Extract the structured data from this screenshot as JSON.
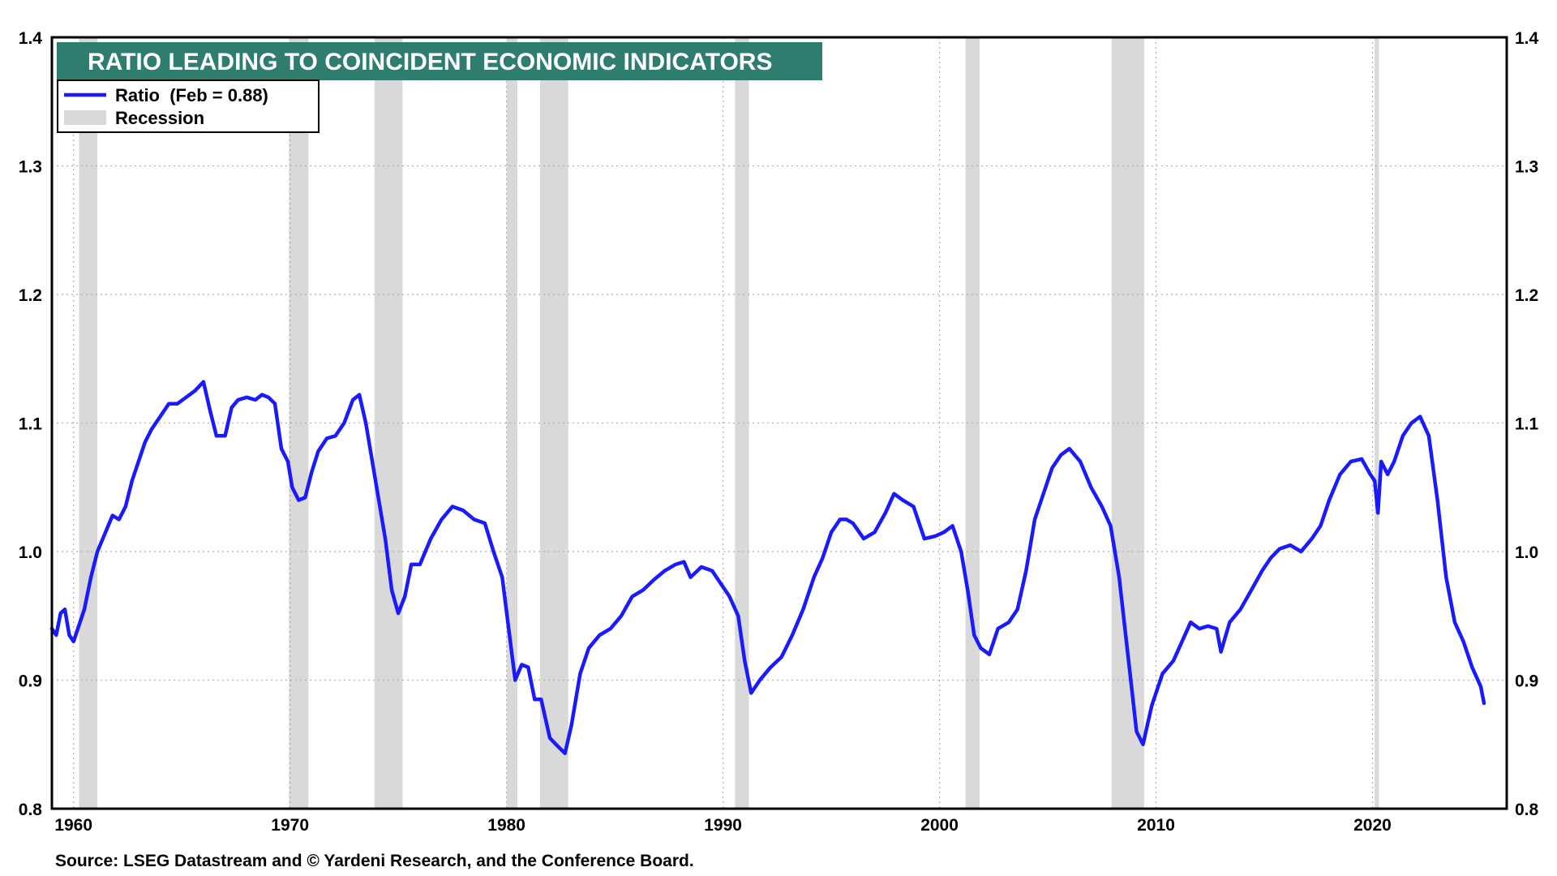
{
  "chart_data": {
    "type": "line",
    "title": "RATIO LEADING TO COINCIDENT ECONOMIC INDICATORS",
    "source": "Source: LSEG Datastream and © Yardeni Research, and the Conference Board.",
    "xlim": [
      1959.0,
      2026.2
    ],
    "ylim": [
      0.8,
      1.4
    ],
    "x_ticks": [
      1960,
      1970,
      1980,
      1990,
      2000,
      2010,
      2020
    ],
    "y_ticks": [
      0.8,
      0.9,
      1.0,
      1.1,
      1.2,
      1.3,
      1.4
    ],
    "y_tick_labels": [
      "0.8",
      "0.9",
      "1.0",
      "1.1",
      "1.2",
      "1.3",
      "1.4"
    ],
    "grid": true,
    "legend_placement": "top-left",
    "legend": [
      {
        "label": "Ratio  (Feb = 0.88)",
        "kind": "line",
        "color": "#1a1aff"
      },
      {
        "label": "Recession",
        "kind": "band",
        "color": "#d9d9d9"
      }
    ],
    "colors": {
      "line": "#1a1aff",
      "recession": "#d9d9d9",
      "title_bg": "#2e7d6f",
      "grid": "#b0b0b0"
    },
    "recessions": [
      [
        1960.25,
        1961.1
      ],
      [
        1969.95,
        1970.85
      ],
      [
        1973.9,
        1975.2
      ],
      [
        1980.0,
        1980.5
      ],
      [
        1981.55,
        1982.85
      ],
      [
        1990.55,
        1991.2
      ],
      [
        2001.2,
        2001.85
      ],
      [
        2007.95,
        2009.45
      ],
      [
        2020.1,
        2020.3
      ]
    ],
    "series": [
      {
        "x": [
          1959.0,
          1959.2,
          1959.4,
          1959.6,
          1959.8,
          1960.0,
          1960.2,
          1960.5,
          1960.8,
          1961.1,
          1961.4,
          1961.8,
          1962.1,
          1962.4,
          1962.7,
          1963.0,
          1963.3,
          1963.6,
          1964.0,
          1964.4,
          1964.8,
          1965.2,
          1965.6,
          1966.0,
          1966.3,
          1966.6,
          1967.0,
          1967.3,
          1967.6,
          1968.0,
          1968.4,
          1968.7,
          1969.0,
          1969.3,
          1969.6,
          1969.9,
          1970.1,
          1970.4,
          1970.7,
          1971.0,
          1971.3,
          1971.7,
          1972.1,
          1972.5,
          1972.9,
          1973.2,
          1973.5,
          1973.8,
          1974.1,
          1974.4,
          1974.7,
          1975.0,
          1975.3,
          1975.6,
          1976.0,
          1976.5,
          1977.0,
          1977.5,
          1978.0,
          1978.5,
          1979.0,
          1979.4,
          1979.8,
          1980.1,
          1980.4,
          1980.7,
          1981.0,
          1981.3,
          1981.6,
          1982.0,
          1982.4,
          1982.7,
          1983.0,
          1983.4,
          1983.8,
          1984.3,
          1984.8,
          1985.3,
          1985.8,
          1986.3,
          1986.8,
          1987.3,
          1987.8,
          1988.2,
          1988.5,
          1989.0,
          1989.5,
          1989.9,
          1990.3,
          1990.7,
          1991.0,
          1991.3,
          1991.7,
          1992.2,
          1992.7,
          1993.2,
          1993.7,
          1994.2,
          1994.6,
          1995.0,
          1995.4,
          1995.7,
          1996.0,
          1996.5,
          1997.0,
          1997.5,
          1997.9,
          1998.3,
          1998.8,
          1999.3,
          1999.8,
          2000.2,
          2000.6,
          2001.0,
          2001.3,
          2001.6,
          2001.9,
          2002.3,
          2002.7,
          2003.2,
          2003.6,
          2004.0,
          2004.4,
          2004.8,
          2005.2,
          2005.6,
          2006.0,
          2006.5,
          2007.0,
          2007.5,
          2007.9,
          2008.3,
          2008.6,
          2008.9,
          2009.1,
          2009.4,
          2009.8,
          2010.3,
          2010.8,
          2011.2,
          2011.6,
          2012.0,
          2012.4,
          2012.8,
          2013.0,
          2013.4,
          2013.9,
          2014.4,
          2014.9,
          2015.3,
          2015.7,
          2016.2,
          2016.7,
          2017.2,
          2017.6,
          2018.0,
          2018.5,
          2019.0,
          2019.5,
          2019.9,
          2020.1,
          2020.25,
          2020.4,
          2020.7,
          2021.0,
          2021.4,
          2021.8,
          2022.2,
          2022.6,
          2023.0,
          2023.4,
          2023.8,
          2024.2,
          2024.6,
          2025.0,
          2025.15
        ],
        "y": [
          0.94,
          0.935,
          0.952,
          0.955,
          0.935,
          0.93,
          0.94,
          0.955,
          0.98,
          1.0,
          1.012,
          1.028,
          1.025,
          1.035,
          1.055,
          1.07,
          1.085,
          1.095,
          1.105,
          1.115,
          1.115,
          1.12,
          1.125,
          1.132,
          1.11,
          1.09,
          1.09,
          1.112,
          1.118,
          1.12,
          1.118,
          1.122,
          1.12,
          1.115,
          1.08,
          1.07,
          1.05,
          1.04,
          1.042,
          1.062,
          1.078,
          1.088,
          1.09,
          1.1,
          1.118,
          1.122,
          1.1,
          1.07,
          1.04,
          1.01,
          0.97,
          0.952,
          0.965,
          0.99,
          0.99,
          1.01,
          1.025,
          1.035,
          1.032,
          1.025,
          1.022,
          1.0,
          0.98,
          0.94,
          0.9,
          0.912,
          0.91,
          0.885,
          0.885,
          0.855,
          0.848,
          0.843,
          0.865,
          0.905,
          0.925,
          0.935,
          0.94,
          0.95,
          0.965,
          0.97,
          0.978,
          0.985,
          0.99,
          0.992,
          0.98,
          0.988,
          0.985,
          0.975,
          0.965,
          0.95,
          0.915,
          0.89,
          0.9,
          0.91,
          0.918,
          0.935,
          0.955,
          0.98,
          0.995,
          1.015,
          1.025,
          1.025,
          1.022,
          1.01,
          1.015,
          1.03,
          1.045,
          1.04,
          1.035,
          1.01,
          1.012,
          1.015,
          1.02,
          1.0,
          0.97,
          0.935,
          0.925,
          0.92,
          0.94,
          0.945,
          0.955,
          0.985,
          1.025,
          1.045,
          1.065,
          1.075,
          1.08,
          1.07,
          1.05,
          1.035,
          1.02,
          0.98,
          0.935,
          0.89,
          0.86,
          0.85,
          0.88,
          0.905,
          0.915,
          0.93,
          0.945,
          0.94,
          0.942,
          0.94,
          0.922,
          0.945,
          0.955,
          0.97,
          0.985,
          0.995,
          1.002,
          1.005,
          1.0,
          1.01,
          1.02,
          1.04,
          1.06,
          1.07,
          1.072,
          1.06,
          1.055,
          1.03,
          1.07,
          1.06,
          1.07,
          1.09,
          1.1,
          1.105,
          1.09,
          1.04,
          0.98,
          0.945,
          0.93,
          0.91,
          0.895,
          0.882
        ]
      }
    ]
  }
}
